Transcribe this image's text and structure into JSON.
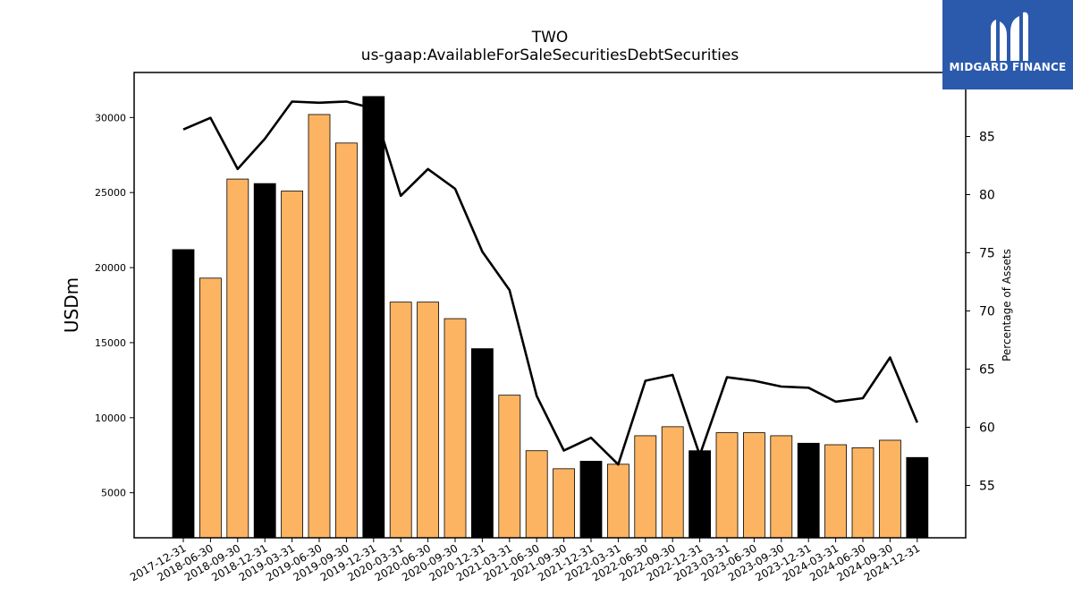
{
  "chart_data": {
    "type": "bar",
    "title": "TWO",
    "subtitle": "us-gaap:AvailableForSaleSecuritiesDebtSecurities",
    "ylabel": "USDm",
    "y2label": "Percentage of Assets",
    "ylim": [
      2000,
      33000
    ],
    "y2lim": [
      50.5,
      90.5
    ],
    "yticks": [
      5000,
      10000,
      15000,
      20000,
      25000,
      30000
    ],
    "y2ticks": [
      55,
      60,
      65,
      70,
      75,
      80,
      85
    ],
    "categories": [
      "2017-12-31",
      "2018-06-30",
      "2018-09-30",
      "2018-12-31",
      "2019-03-31",
      "2019-06-30",
      "2019-09-30",
      "2019-12-31",
      "2020-03-31",
      "2020-06-30",
      "2020-09-30",
      "2020-12-31",
      "2021-03-31",
      "2021-06-30",
      "2021-09-30",
      "2021-12-31",
      "2022-03-31",
      "2022-06-30",
      "2022-09-30",
      "2022-12-31",
      "2023-03-31",
      "2023-06-30",
      "2023-09-30",
      "2023-12-31",
      "2024-03-31",
      "2024-06-30",
      "2024-09-30",
      "2024-12-31"
    ],
    "values": [
      21200,
      19300,
      25900,
      25600,
      25100,
      30200,
      28300,
      31400,
      17700,
      17700,
      16600,
      14600,
      11500,
      7800,
      6600,
      7100,
      6900,
      8800,
      9400,
      7800,
      9000,
      9000,
      8800,
      8300,
      8200,
      8000,
      8500,
      7350
    ],
    "bar_kind": [
      "year-end",
      "quarter",
      "quarter",
      "year-end",
      "quarter",
      "quarter",
      "quarter",
      "year-end",
      "quarter",
      "quarter",
      "quarter",
      "year-end",
      "quarter",
      "quarter",
      "quarter",
      "year-end",
      "quarter",
      "quarter",
      "quarter",
      "year-end",
      "quarter",
      "quarter",
      "quarter",
      "year-end",
      "quarter",
      "quarter",
      "quarter",
      "year-end"
    ],
    "line_values": [
      85.6,
      86.6,
      82.2,
      84.8,
      88.0,
      87.9,
      88.0,
      87.4,
      79.9,
      82.2,
      80.5,
      75.1,
      71.8,
      62.7,
      58.0,
      59.1,
      56.8,
      64.0,
      64.5,
      57.6,
      64.3,
      64.0,
      63.5,
      63.4,
      62.2,
      62.5,
      66.0,
      60.4
    ],
    "colors": {
      "year_end_bar": "#000000",
      "quarter_bar": "#fdb462",
      "line": "#000000"
    }
  },
  "logo": {
    "text": "MIDGARD FINANCE",
    "background": "#2b5aad"
  }
}
